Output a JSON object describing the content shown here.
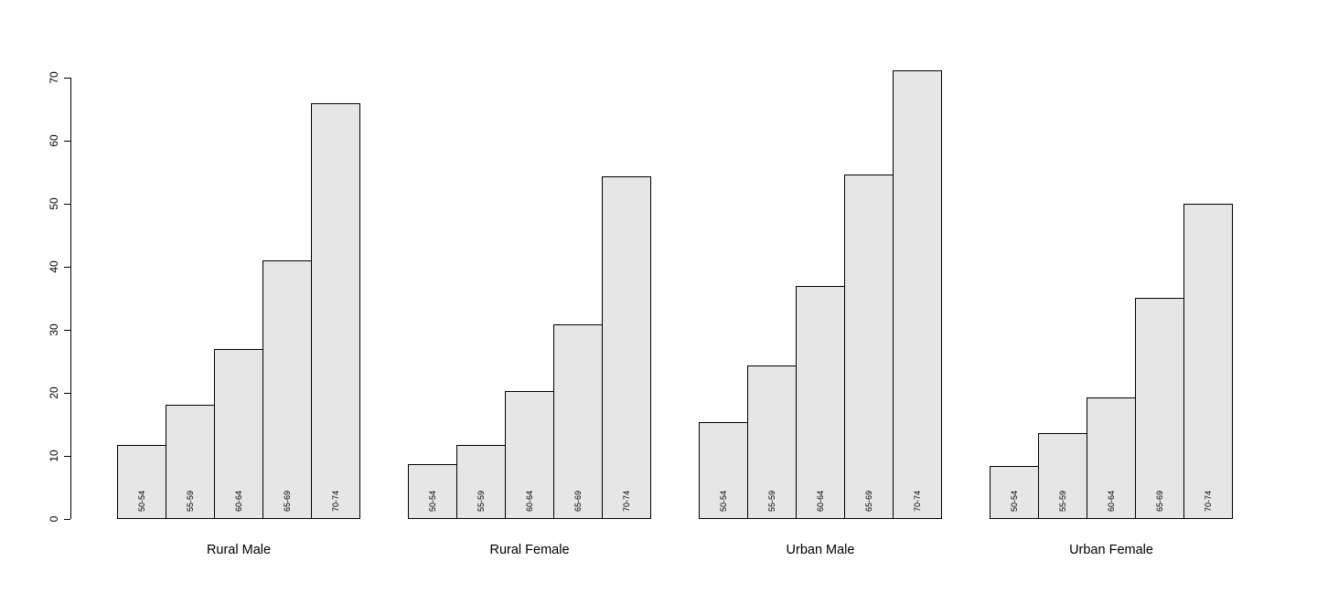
{
  "chart_data": {
    "type": "bar",
    "title": "",
    "xlabel": "",
    "ylabel": "",
    "ylim": [
      0,
      70
    ],
    "yticks": [
      0,
      10,
      20,
      30,
      40,
      50,
      60,
      70
    ],
    "grid": false,
    "legend": "none",
    "bar_labels": [
      "50-54",
      "55-59",
      "60-64",
      "65-69",
      "70-74"
    ],
    "categories": [
      "Rural Male",
      "Rural Female",
      "Urban Male",
      "Urban Female"
    ],
    "groups": [
      {
        "label": "Rural Male",
        "values": [
          11.7,
          18.1,
          26.9,
          41.0,
          66.0
        ]
      },
      {
        "label": "Rural Female",
        "values": [
          8.7,
          11.7,
          20.3,
          30.9,
          54.3
        ]
      },
      {
        "label": "Urban Male",
        "values": [
          15.4,
          24.3,
          37.0,
          54.6,
          71.1
        ]
      },
      {
        "label": "Urban Female",
        "values": [
          8.4,
          13.6,
          19.3,
          35.1,
          50.0
        ]
      }
    ],
    "colors": {
      "bar_fill": "#e6e6e6",
      "bar_border": "#000000",
      "axis": "#000000",
      "text": "#000000",
      "background": "#ffffff"
    }
  }
}
